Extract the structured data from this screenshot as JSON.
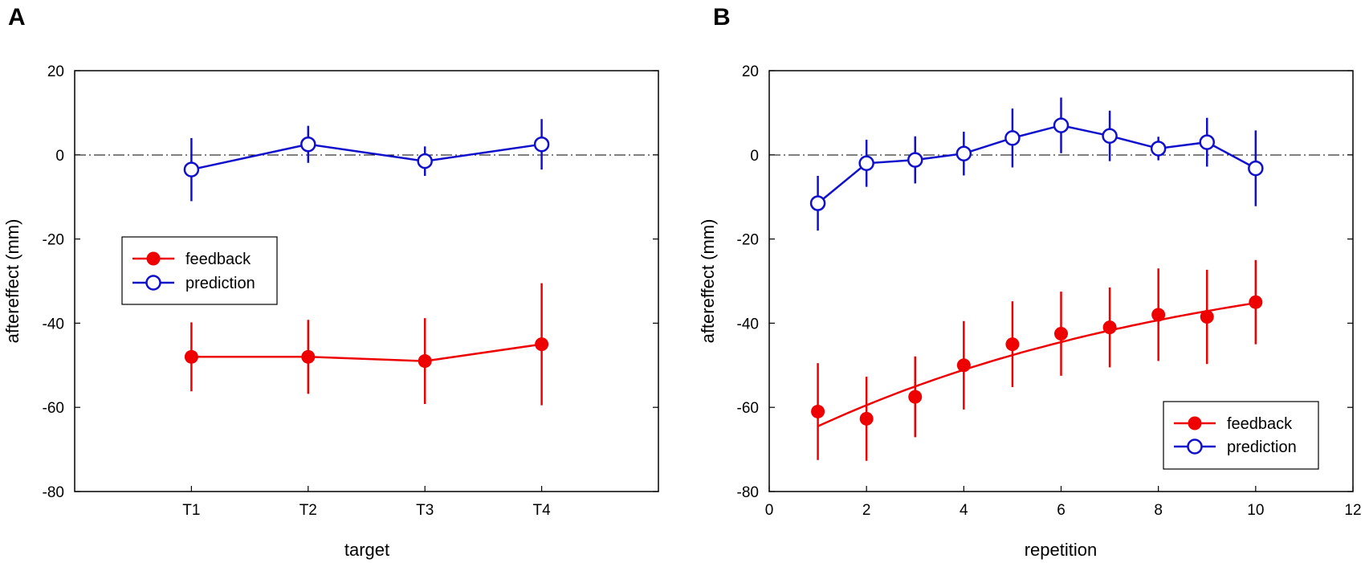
{
  "colors": {
    "feedback": "#ee0000",
    "prediction": "#1010cc",
    "axis": "#000000"
  },
  "chart_data": [
    {
      "panel_label": "A",
      "type": "line",
      "xlabel": "target",
      "ylabel": "aftereffect (mm)",
      "x_categories": [
        "T1",
        "T2",
        "T3",
        "T4"
      ],
      "ylim": [
        -80,
        20
      ],
      "y_ticks": [
        "20",
        "0",
        "-20",
        "-40",
        "-60",
        "-80"
      ],
      "reference_line": 0,
      "legend": {
        "position": "middle-left",
        "entries": [
          "feedback",
          "prediction"
        ]
      },
      "series": [
        {
          "name": "feedback",
          "marker": "filled-circle",
          "values": [
            -48,
            -48,
            -49,
            -45
          ],
          "errors": [
            8.2,
            8.8,
            10.2,
            14.5
          ]
        },
        {
          "name": "prediction",
          "marker": "open-circle",
          "values": [
            -3.5,
            2.5,
            -1.5,
            2.5
          ],
          "errors": [
            7.5,
            4.4,
            3.5,
            6.0
          ]
        }
      ]
    },
    {
      "panel_label": "B",
      "type": "line",
      "xlabel": "repetition",
      "ylabel": "aftereffect (mm)",
      "xlim": [
        0,
        12
      ],
      "x_ticks": [
        "0",
        "2",
        "4",
        "6",
        "8",
        "10",
        "12"
      ],
      "ylim": [
        -80,
        20
      ],
      "y_ticks": [
        "20",
        "0",
        "-20",
        "-40",
        "-60",
        "-80"
      ],
      "reference_line": 0,
      "legend": {
        "position": "bottom-right",
        "entries": [
          "feedback",
          "prediction"
        ]
      },
      "series": [
        {
          "name": "feedback",
          "marker": "filled-circle",
          "fit": "exponential",
          "x": [
            1,
            2,
            3,
            4,
            5,
            6,
            7,
            8,
            9,
            10
          ],
          "values": [
            -61,
            -62.7,
            -57.5,
            -50,
            -45,
            -42.5,
            -41,
            -38,
            -38.5,
            -35
          ],
          "errors": [
            11.5,
            10,
            9.6,
            10.5,
            10.2,
            10,
            9.5,
            11,
            11.2,
            10
          ]
        },
        {
          "name": "prediction",
          "marker": "open-circle",
          "x": [
            1,
            2,
            3,
            4,
            5,
            6,
            7,
            8,
            9,
            10
          ],
          "values": [
            -11.5,
            -2,
            -1.2,
            0.3,
            4,
            7,
            4.5,
            1.5,
            3,
            -3.2
          ],
          "errors": [
            6.5,
            5.6,
            5.6,
            5.2,
            7.0,
            6.6,
            6.0,
            2.8,
            5.8,
            9.0
          ]
        }
      ],
      "fit_curve": {
        "series": "feedback",
        "x_range": [
          1,
          10
        ],
        "y_start": -64.5,
        "y_end": -35.2
      }
    }
  ]
}
